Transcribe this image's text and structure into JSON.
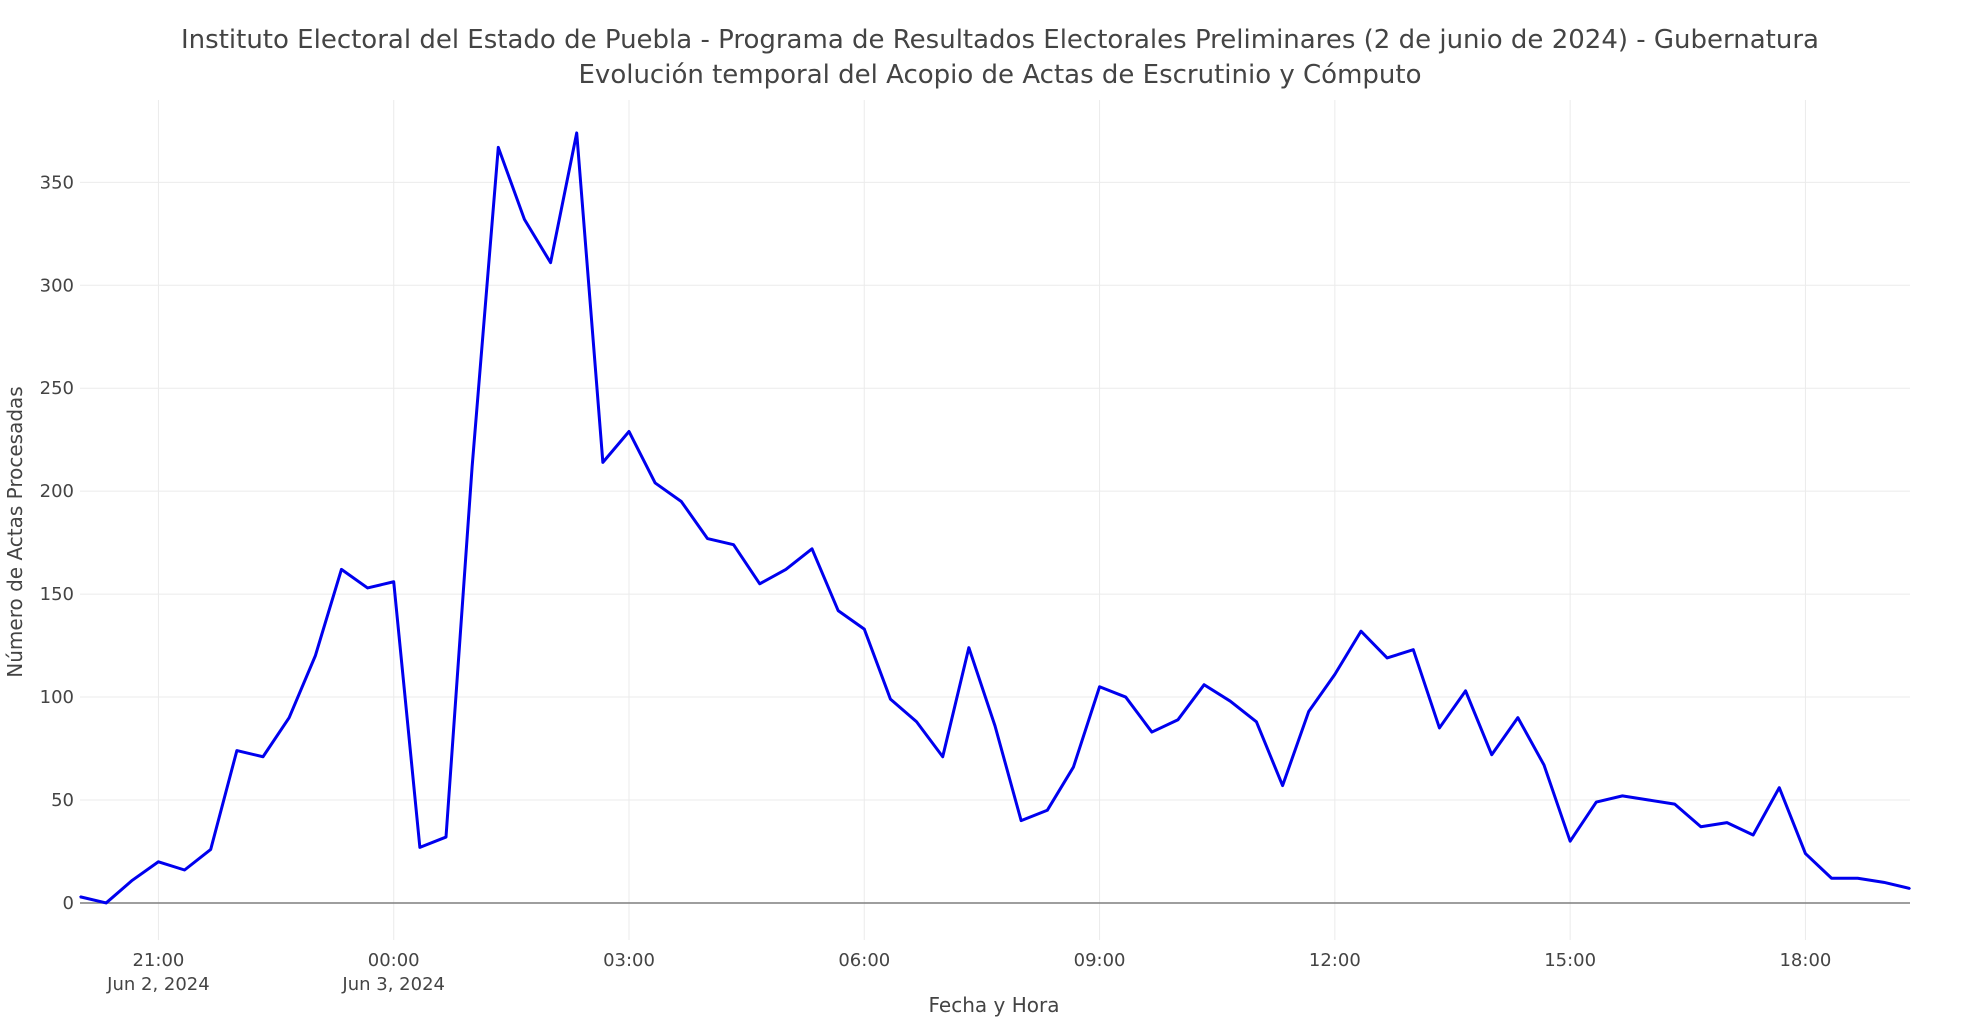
{
  "chart_data": {
    "type": "line",
    "title": "Instituto Electoral del Estado de Puebla - Programa de Resultados Electorales Preliminares (2 de junio de 2024) - Gubernatura",
    "subtitle": "Evolución temporal del Acopio de Actas de Escrutinio y Cómputo",
    "xlabel": "Fecha y Hora",
    "ylabel": "Número de Actas Procesadas",
    "xlim": [
      "2024-06-02 20:00",
      "2024-06-03 19:20"
    ],
    "ylim": [
      -18,
      390
    ],
    "grid": true,
    "x_ticks": [
      {
        "t": "2024-06-02 21:00",
        "label": "21:00",
        "sublabel": "Jun 2, 2024"
      },
      {
        "t": "2024-06-03 00:00",
        "label": "00:00",
        "sublabel": "Jun 3, 2024"
      },
      {
        "t": "2024-06-03 03:00",
        "label": "03:00",
        "sublabel": ""
      },
      {
        "t": "2024-06-03 06:00",
        "label": "06:00",
        "sublabel": ""
      },
      {
        "t": "2024-06-03 09:00",
        "label": "09:00",
        "sublabel": ""
      },
      {
        "t": "2024-06-03 12:00",
        "label": "12:00",
        "sublabel": ""
      },
      {
        "t": "2024-06-03 15:00",
        "label": "15:00",
        "sublabel": ""
      },
      {
        "t": "2024-06-03 18:00",
        "label": "18:00",
        "sublabel": ""
      }
    ],
    "y_ticks": [
      0,
      50,
      100,
      150,
      200,
      250,
      300,
      350
    ],
    "series": [
      {
        "color": "#0000ee",
        "x": [
          "2024-06-02 20:00",
          "2024-06-02 20:20",
          "2024-06-02 20:40",
          "2024-06-02 21:00",
          "2024-06-02 21:20",
          "2024-06-02 21:40",
          "2024-06-02 22:00",
          "2024-06-02 22:20",
          "2024-06-02 22:40",
          "2024-06-02 23:00",
          "2024-06-02 23:20",
          "2024-06-02 23:40",
          "2024-06-03 00:00",
          "2024-06-03 00:20",
          "2024-06-03 00:40",
          "2024-06-03 01:00",
          "2024-06-03 01:20",
          "2024-06-03 01:40",
          "2024-06-03 02:00",
          "2024-06-03 02:20",
          "2024-06-03 02:40",
          "2024-06-03 03:00",
          "2024-06-03 03:20",
          "2024-06-03 03:40",
          "2024-06-03 04:00",
          "2024-06-03 04:20",
          "2024-06-03 04:40",
          "2024-06-03 05:00",
          "2024-06-03 05:20",
          "2024-06-03 05:40",
          "2024-06-03 06:00",
          "2024-06-03 06:20",
          "2024-06-03 06:40",
          "2024-06-03 07:00",
          "2024-06-03 07:20",
          "2024-06-03 07:40",
          "2024-06-03 08:00",
          "2024-06-03 08:20",
          "2024-06-03 08:40",
          "2024-06-03 09:00",
          "2024-06-03 09:20",
          "2024-06-03 09:40",
          "2024-06-03 10:00",
          "2024-06-03 10:20",
          "2024-06-03 10:40",
          "2024-06-03 11:00",
          "2024-06-03 11:20",
          "2024-06-03 11:40",
          "2024-06-03 12:00",
          "2024-06-03 12:20",
          "2024-06-03 12:40",
          "2024-06-03 13:00",
          "2024-06-03 13:20",
          "2024-06-03 13:40",
          "2024-06-03 14:00",
          "2024-06-03 14:20",
          "2024-06-03 14:40",
          "2024-06-03 15:00",
          "2024-06-03 15:20",
          "2024-06-03 15:40",
          "2024-06-03 16:00",
          "2024-06-03 16:20",
          "2024-06-03 16:40",
          "2024-06-03 17:00",
          "2024-06-03 17:20",
          "2024-06-03 17:40",
          "2024-06-03 18:00",
          "2024-06-03 18:20",
          "2024-06-03 18:40",
          "2024-06-03 19:00",
          "2024-06-03 19:20"
        ],
        "y": [
          3,
          0,
          11,
          20,
          16,
          26,
          74,
          71,
          90,
          120,
          162,
          153,
          156,
          27,
          32,
          212,
          367,
          332,
          311,
          374,
          214,
          229,
          204,
          195,
          177,
          174,
          155,
          162,
          172,
          142,
          133,
          99,
          88,
          71,
          124,
          86,
          40,
          45,
          66,
          105,
          100,
          83,
          89,
          106,
          98,
          88,
          57,
          93,
          111,
          132,
          119,
          123,
          85,
          103,
          72,
          90,
          67,
          30,
          49,
          52,
          50,
          48,
          37,
          39,
          33,
          56,
          24,
          12,
          12,
          10,
          7
        ]
      }
    ]
  }
}
